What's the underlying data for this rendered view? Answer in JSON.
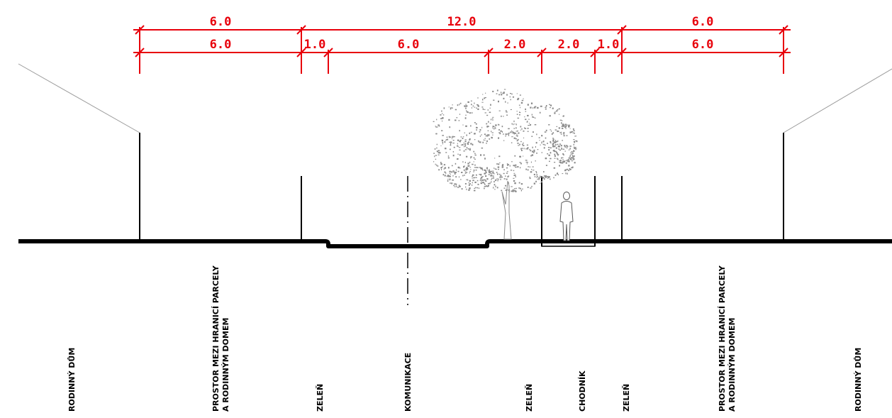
{
  "section": {
    "dimensions_top": [
      "6.0",
      "12.0",
      "6.0"
    ],
    "dimensions_detail": [
      "6.0",
      "1.0",
      "6.0",
      "2.0",
      "2.0",
      "1.0",
      "6.0"
    ],
    "labels": {
      "house_left": "RODINNÝ DŮM",
      "space_left_line1": "PROSTOR MEZI HRANICÍ PARCELY",
      "space_left_line2": "A RODINNÝM DOMEM",
      "green_left": "ZELEŇ",
      "road": "KOMUNIKACE",
      "green_mid": "ZELEŇ",
      "sidewalk": "CHODNÍK",
      "green_right": "ZELEŇ",
      "space_right_line1": "PROSTOR MEZI HRANICÍ PARCELY",
      "space_right_line2": "A RODINNÝM DOMEM",
      "house_right": "RODINNÝ DŮM"
    },
    "colors": {
      "dimension": "#e8000b",
      "ground": "#000000",
      "tree": "#8a8a8a"
    }
  }
}
